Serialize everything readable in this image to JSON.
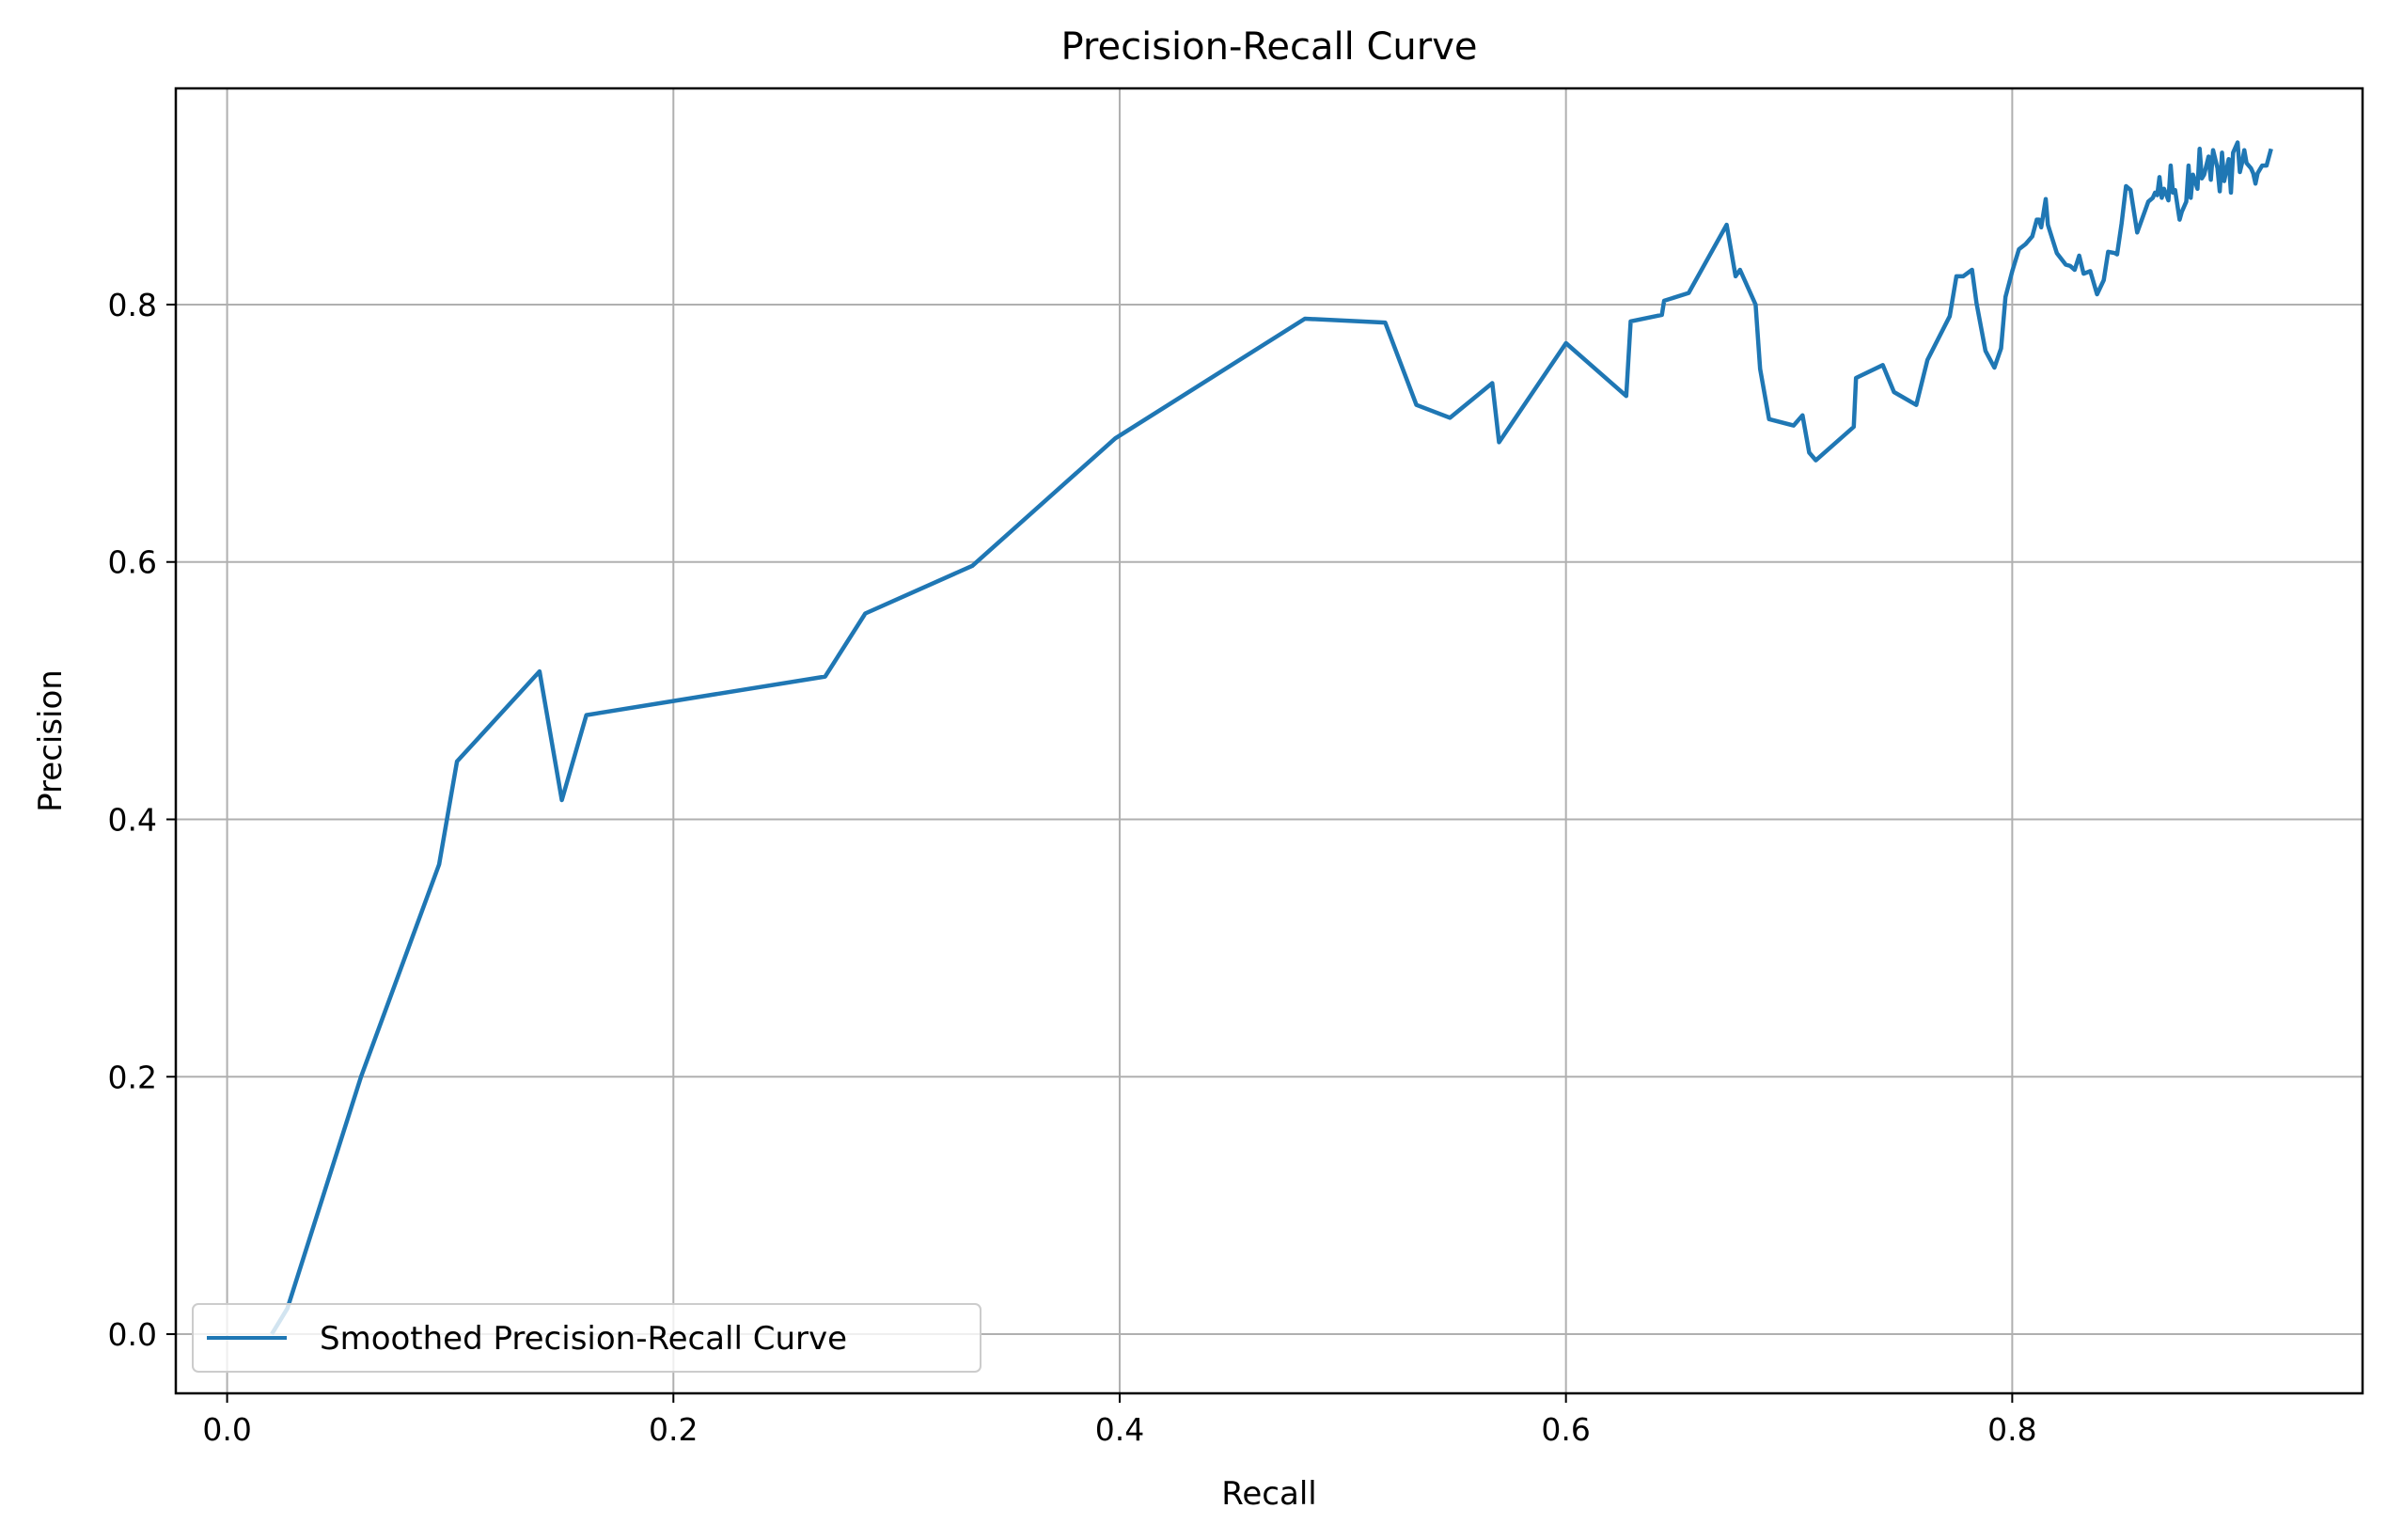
{
  "chart_data": {
    "type": "line",
    "title": "Precision-Recall Curve",
    "xlabel": "Recall",
    "ylabel": "Precision",
    "xlim": [
      -0.023,
      0.957
    ],
    "ylim": [
      -0.046,
      0.968
    ],
    "xticks": [
      {
        "value": 0.0,
        "label": "0.0"
      },
      {
        "value": 0.2,
        "label": "0.2"
      },
      {
        "value": 0.4,
        "label": "0.4"
      },
      {
        "value": 0.6,
        "label": "0.6"
      },
      {
        "value": 0.8,
        "label": "0.8"
      }
    ],
    "yticks": [
      {
        "value": 0.0,
        "label": "0.0"
      },
      {
        "value": 0.2,
        "label": "0.2"
      },
      {
        "value": 0.4,
        "label": "0.4"
      },
      {
        "value": 0.6,
        "label": "0.6"
      },
      {
        "value": 0.8,
        "label": "0.8"
      }
    ],
    "grid": true,
    "legend_position": "lower-left",
    "series": [
      {
        "name": "Smoothed Precision-Recall Curve",
        "color": "#1f77b4",
        "x": [
          0.02,
          0.027,
          0.06,
          0.095,
          0.103,
          0.14,
          0.15,
          0.161,
          0.2,
          0.268,
          0.286,
          0.334,
          0.398,
          0.483,
          0.519,
          0.533,
          0.548,
          0.567,
          0.57,
          0.6,
          0.627,
          0.629,
          0.643,
          0.644,
          0.655,
          0.672,
          0.676,
          0.678,
          0.685,
          0.687,
          0.691,
          0.702,
          0.706,
          0.709,
          0.712,
          0.729,
          0.73,
          0.742,
          0.747,
          0.757,
          0.762,
          0.772,
          0.775,
          0.778,
          0.782,
          0.784,
          0.788,
          0.792,
          0.795,
          0.797,
          0.8,
          0.803,
          0.806,
          0.809,
          0.811,
          0.812,
          0.813,
          0.815,
          0.816,
          0.82,
          0.824,
          0.826,
          0.828,
          0.83,
          0.832,
          0.835,
          0.838,
          0.841,
          0.843,
          0.846,
          0.847,
          0.849,
          0.851,
          0.853,
          0.856,
          0.861,
          0.863,
          0.864,
          0.865,
          0.866,
          0.867,
          0.868,
          0.87,
          0.871,
          0.872,
          0.873,
          0.875,
          0.876,
          0.878,
          0.879,
          0.88,
          0.881,
          0.883,
          0.884,
          0.885,
          0.886,
          0.888,
          0.889,
          0.89,
          0.892,
          0.893,
          0.894,
          0.895,
          0.897,
          0.898,
          0.899,
          0.901,
          0.902,
          0.903,
          0.904,
          0.905,
          0.907,
          0.908,
          0.909,
          0.91,
          0.912,
          0.914,
          0.916
        ],
        "y": [
          0.0,
          0.02,
          0.2,
          0.365,
          0.445,
          0.515,
          0.415,
          0.481,
          0.492,
          0.511,
          0.56,
          0.597,
          0.696,
          0.789,
          0.786,
          0.722,
          0.712,
          0.739,
          0.693,
          0.77,
          0.729,
          0.787,
          0.792,
          0.803,
          0.809,
          0.862,
          0.822,
          0.827,
          0.8,
          0.75,
          0.711,
          0.706,
          0.714,
          0.685,
          0.679,
          0.705,
          0.743,
          0.753,
          0.732,
          0.722,
          0.757,
          0.791,
          0.822,
          0.822,
          0.827,
          0.801,
          0.764,
          0.751,
          0.766,
          0.806,
          0.826,
          0.843,
          0.847,
          0.853,
          0.866,
          0.866,
          0.86,
          0.882,
          0.862,
          0.84,
          0.831,
          0.83,
          0.827,
          0.838,
          0.824,
          0.826,
          0.808,
          0.819,
          0.841,
          0.84,
          0.839,
          0.863,
          0.892,
          0.889,
          0.856,
          0.88,
          0.883,
          0.887,
          0.885,
          0.899,
          0.883,
          0.89,
          0.881,
          0.908,
          0.887,
          0.889,
          0.866,
          0.872,
          0.88,
          0.908,
          0.883,
          0.901,
          0.89,
          0.921,
          0.898,
          0.901,
          0.915,
          0.897,
          0.92,
          0.906,
          0.888,
          0.918,
          0.896,
          0.913,
          0.887,
          0.918,
          0.926,
          0.903,
          0.91,
          0.92,
          0.91,
          0.906,
          0.902,
          0.894,
          0.902,
          0.908,
          0.908,
          0.921
        ]
      }
    ]
  }
}
